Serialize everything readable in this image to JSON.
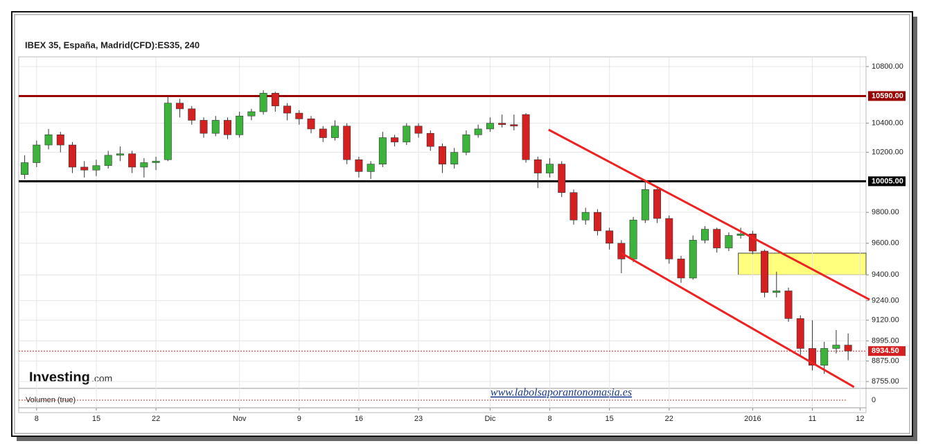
{
  "chart_data": {
    "type": "candlestick",
    "title": "IBEX 35, España, Madrid(CFD):ES35, 240",
    "categories": [
      null,
      "8",
      null,
      null,
      null,
      null,
      "15",
      null,
      null,
      null,
      null,
      "22",
      null,
      null,
      null,
      null,
      null,
      null,
      "Nov",
      null,
      null,
      null,
      null,
      "9",
      null,
      null,
      null,
      null,
      "16",
      null,
      null,
      null,
      null,
      "23",
      null,
      null,
      null,
      null,
      null,
      "Dic",
      null,
      null,
      null,
      null,
      "8",
      null,
      null,
      null,
      null,
      "15",
      null,
      null,
      null,
      null,
      "22",
      null,
      null,
      null,
      null,
      null,
      null,
      "2016",
      null,
      null,
      null,
      null,
      "11",
      null,
      null,
      null,
      "12"
    ],
    "open": [
      10050,
      10130,
      10250,
      10320,
      10250,
      10100,
      10080,
      10110,
      10180,
      10190,
      10100,
      10130,
      10150,
      10540,
      10500,
      10420,
      10330,
      10420,
      10320,
      10450,
      10480,
      10610,
      10520,
      10470,
      10430,
      10360,
      10300,
      10380,
      10150,
      10070,
      10120,
      10300,
      10270,
      10380,
      10330,
      10240,
      10120,
      10200,
      10320,
      10360,
      10400,
      10390,
      10460,
      10150,
      10060,
      10120,
      9930,
      9750,
      9800,
      9680,
      9600,
      9500,
      9750,
      9950,
      9760,
      9500,
      9380,
      9620,
      9690,
      9570,
      9650,
      9660,
      9550,
      9290,
      9300,
      9130,
      8950,
      8850,
      8950,
      8970,
      null
    ],
    "high": [
      10180,
      10280,
      10360,
      10340,
      10270,
      10140,
      10150,
      10210,
      10240,
      10210,
      10160,
      10170,
      10590,
      10570,
      10520,
      10440,
      10450,
      10440,
      10480,
      10500,
      10630,
      10620,
      10540,
      10490,
      10450,
      10380,
      10420,
      10400,
      10170,
      10140,
      10340,
      10320,
      10400,
      10400,
      10350,
      10260,
      10230,
      10350,
      10390,
      10440,
      10460,
      10460,
      10470,
      10170,
      10160,
      10140,
      9950,
      9830,
      9820,
      9700,
      9620,
      9770,
      10000,
      9970,
      9780,
      9520,
      9650,
      9710,
      9700,
      9670,
      9700,
      9680,
      9560,
      9420,
      9320,
      9150,
      9120,
      8990,
      9060,
      9040,
      null
    ],
    "low": [
      10020,
      10100,
      10220,
      10200,
      10060,
      10030,
      10040,
      10090,
      10140,
      10060,
      10030,
      10080,
      10140,
      10440,
      10390,
      10300,
      10310,
      10290,
      10300,
      10420,
      10460,
      10480,
      10420,
      10390,
      10330,
      10270,
      10280,
      10120,
      10030,
      10020,
      10100,
      10240,
      10250,
      10300,
      10210,
      10060,
      10090,
      10180,
      10300,
      10340,
      10370,
      10350,
      10130,
      9960,
      10030,
      9900,
      9720,
      9720,
      9650,
      9560,
      9410,
      9480,
      9730,
      9730,
      9470,
      9350,
      9370,
      9600,
      9540,
      9550,
      9630,
      9530,
      9260,
      9260,
      9110,
      8900,
      8820,
      8800,
      8920,
      8880,
      null
    ],
    "close": [
      10130,
      10250,
      10320,
      10250,
      10100,
      10080,
      10110,
      10180,
      10190,
      10100,
      10130,
      10140,
      10540,
      10500,
      10420,
      10330,
      10420,
      10320,
      10450,
      10480,
      10610,
      10520,
      10470,
      10430,
      10360,
      10300,
      10380,
      10150,
      10070,
      10120,
      10300,
      10270,
      10380,
      10330,
      10240,
      10120,
      10200,
      10320,
      10360,
      10400,
      10390,
      10380,
      10150,
      10060,
      10120,
      9930,
      9750,
      9800,
      9680,
      9600,
      9500,
      9750,
      9950,
      9760,
      9500,
      9380,
      9620,
      9690,
      9570,
      9650,
      9660,
      9550,
      9290,
      9300,
      9130,
      8950,
      8850,
      8950,
      8970,
      8934.5,
      null
    ],
    "up_color": "#3cb43c",
    "down_color": "#d42020",
    "ylim": [
      8715,
      10870
    ],
    "log_scale": true,
    "grid": true,
    "yticks": [
      {
        "value": 10800,
        "label": "10800.00"
      },
      {
        "value": 10400,
        "label": "10400.00"
      },
      {
        "value": 10200,
        "label": "10200.00"
      },
      {
        "value": 9800,
        "label": "9800.00"
      },
      {
        "value": 9600,
        "label": "9600.00"
      },
      {
        "value": 9400,
        "label": "9400.00"
      },
      {
        "value": 9240,
        "label": "9240.00"
      },
      {
        "value": 9120,
        "label": "9120.00"
      },
      {
        "value": 8995,
        "label": "8995.00"
      },
      {
        "value": 8875,
        "label": "8875.00"
      },
      {
        "value": 8755,
        "label": "8755.00"
      }
    ],
    "levels": [
      {
        "value": 10590,
        "label": "10590.00",
        "color": "#990000"
      },
      {
        "value": 10005,
        "label": "10005.00",
        "color": "#000000"
      },
      {
        "value": 8934.5,
        "label": "8934.50",
        "color": "#d42020",
        "dotted": true
      }
    ],
    "trendlines": [
      {
        "from": [
          43.9,
          10355
        ],
        "to": [
          70.8,
          9246
        ],
        "color": "#ee2222"
      },
      {
        "from": [
          50.0,
          9537
        ],
        "to": [
          69.5,
          8723
        ],
        "color": "#ee2222"
      }
    ],
    "zones": [
      {
        "x": [
          59.8,
          70.8
        ],
        "y": [
          9400,
          9537
        ],
        "color": "#ffff66"
      }
    ],
    "volume": {
      "label": "Volumen (true)",
      "yticks": [
        0
      ]
    },
    "logo": {
      "brand": "Investing",
      "suffix": ".com"
    },
    "watermark": "www.labolsaporantonomasia.es"
  }
}
